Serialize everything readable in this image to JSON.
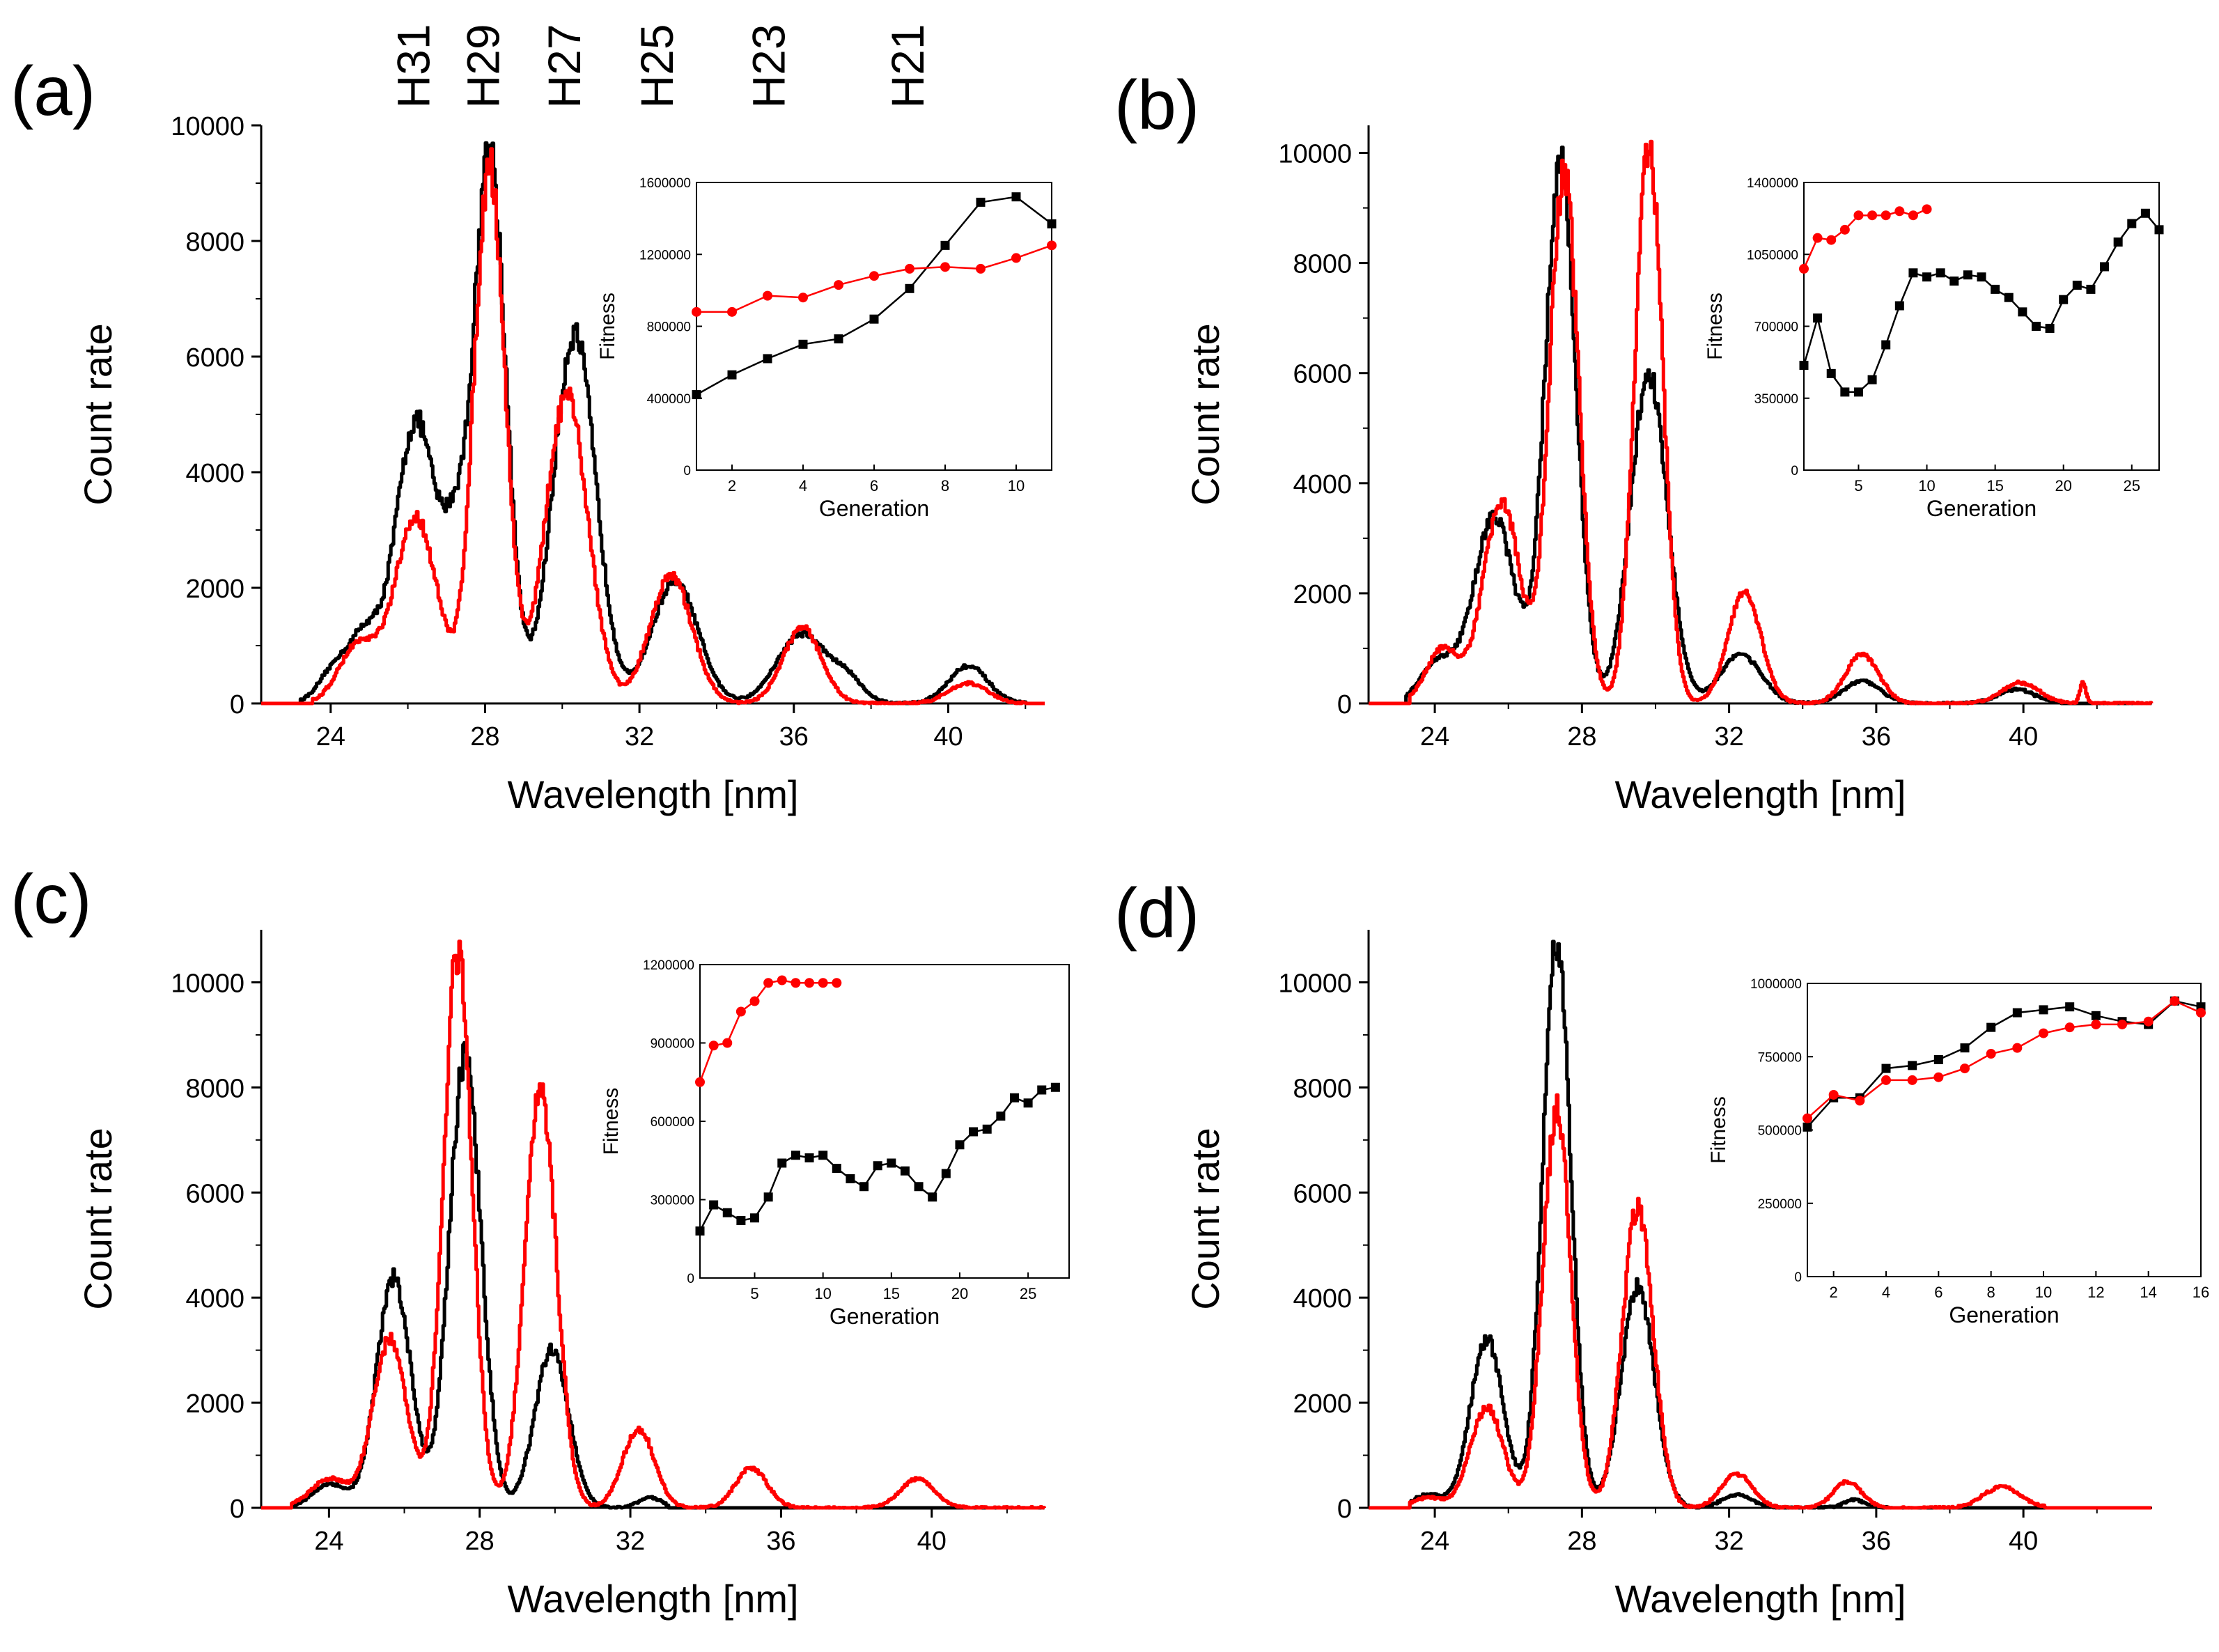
{
  "figure": {
    "harmonic_labels": [
      "H31",
      "H29",
      "H27",
      "H25",
      "H23",
      "H21"
    ],
    "harmonic_wavelengths_nm": [
      26.2,
      28.0,
      30.1,
      32.5,
      35.4,
      39.0
    ]
  },
  "colors": {
    "black_series": "#000000",
    "red_series": "#ff0000"
  },
  "chart_data": [
    {
      "panel_label": "(a)",
      "type": "line",
      "xlabel": "Wavelength [nm]",
      "ylabel": "Count rate",
      "xlim": [
        22.2,
        42.5
      ],
      "ylim": [
        0,
        10000
      ],
      "xticks": [
        24,
        28,
        32,
        36,
        40
      ],
      "yticks": [
        0,
        2000,
        4000,
        6000,
        8000,
        10000
      ],
      "series": [
        {
          "name": "black",
          "color": "#000000",
          "peaks": [
            [
              24.2,
              700,
              0.45
            ],
            [
              24.9,
              900,
              0.35
            ],
            [
              26.2,
              4900,
              0.55
            ],
            [
              27.2,
              1800,
              0.3
            ],
            [
              28.1,
              9600,
              0.42
            ],
            [
              30.3,
              6400,
              0.55
            ],
            [
              32.9,
              2100,
              0.6
            ],
            [
              36.2,
              1200,
              0.65
            ],
            [
              40.5,
              650,
              0.5
            ],
            [
              37.4,
              350,
              0.4
            ]
          ],
          "range": [
            23.2,
            42.0
          ]
        },
        {
          "name": "red",
          "color": "#ff0000",
          "peaks": [
            [
              24.7,
              1000,
              0.5
            ],
            [
              26.2,
              3200,
              0.55
            ],
            [
              28.1,
              9300,
              0.4
            ],
            [
              30.1,
              5300,
              0.55
            ],
            [
              32.8,
              2200,
              0.55
            ],
            [
              36.2,
              1300,
              0.5
            ],
            [
              40.5,
              350,
              0.5
            ]
          ],
          "range": [
            23.5,
            42.0
          ]
        }
      ],
      "inset": {
        "xlabel": "Generation",
        "ylabel": "Fitness",
        "xlim": [
          1,
          11
        ],
        "ylim": [
          0,
          1600000
        ],
        "xticks": [
          2,
          4,
          6,
          8,
          10
        ],
        "yticks": [
          0,
          400000,
          800000,
          1200000,
          1600000
        ],
        "series": [
          {
            "name": "black",
            "color": "#000000",
            "marker": "square",
            "x": [
              1,
              2,
              3,
              4,
              5,
              6,
              7,
              8,
              9,
              10,
              11
            ],
            "y": [
              420000,
              530000,
              620000,
              700000,
              730000,
              840000,
              1010000,
              1250000,
              1490000,
              1520000,
              1370000
            ]
          },
          {
            "name": "red",
            "color": "#ff0000",
            "marker": "circle",
            "x": [
              1,
              2,
              3,
              4,
              5,
              6,
              7,
              8,
              9,
              10,
              11
            ],
            "y": [
              880000,
              880000,
              970000,
              960000,
              1030000,
              1080000,
              1120000,
              1130000,
              1120000,
              1180000,
              1250000
            ]
          }
        ]
      }
    },
    {
      "panel_label": "(b)",
      "type": "line",
      "xlabel": "Wavelength [nm]",
      "ylabel": "Count rate",
      "xlim": [
        22.2,
        43.5
      ],
      "ylim": [
        0,
        10500
      ],
      "xticks": [
        24,
        28,
        32,
        36,
        40
      ],
      "yticks": [
        0,
        2000,
        4000,
        6000,
        8000,
        10000
      ],
      "series": [
        {
          "name": "black",
          "color": "#000000",
          "peaks": [
            [
              24.1,
              750,
              0.5
            ],
            [
              25.6,
              3400,
              0.55
            ],
            [
              27.4,
              9800,
              0.42
            ],
            [
              29.8,
              6000,
              0.5
            ],
            [
              32.3,
              900,
              0.55
            ],
            [
              35.6,
              400,
              0.5
            ],
            [
              39.8,
              250,
              0.5
            ]
          ],
          "range": [
            23.2,
            41.0
          ]
        },
        {
          "name": "red",
          "color": "#ff0000",
          "peaks": [
            [
              24.2,
              1000,
              0.45
            ],
            [
              25.8,
              3700,
              0.5
            ],
            [
              27.5,
              9600,
              0.4
            ],
            [
              29.8,
              10100,
              0.38
            ],
            [
              32.4,
              2000,
              0.45
            ],
            [
              35.6,
              900,
              0.45
            ],
            [
              39.9,
              380,
              0.5
            ],
            [
              41.6,
              400,
              0.08
            ]
          ],
          "range": [
            23.3,
            43.5
          ]
        }
      ],
      "inset": {
        "xlabel": "Generation",
        "ylabel": "Fitness",
        "xlim": [
          1,
          27
        ],
        "ylim": [
          0,
          1400000
        ],
        "xticks": [
          5,
          10,
          15,
          20,
          25
        ],
        "yticks": [
          0,
          350000,
          700000,
          1050000,
          1400000
        ],
        "series": [
          {
            "name": "black",
            "color": "#000000",
            "marker": "square",
            "x": [
              1,
              2,
              3,
              4,
              5,
              6,
              7,
              8,
              9,
              10,
              11,
              12,
              13,
              14,
              15,
              16,
              17,
              18,
              19,
              20,
              21,
              22,
              23,
              24,
              25,
              26,
              27
            ],
            "y": [
              510000,
              740000,
              470000,
              380000,
              380000,
              440000,
              610000,
              800000,
              960000,
              940000,
              960000,
              920000,
              950000,
              940000,
              880000,
              840000,
              770000,
              700000,
              690000,
              830000,
              900000,
              880000,
              990000,
              1110000,
              1200000,
              1250000,
              1170000
            ]
          },
          {
            "name": "red",
            "color": "#ff0000",
            "marker": "circle",
            "x": [
              1,
              2,
              3,
              4,
              5,
              6,
              7,
              8,
              9,
              10
            ],
            "y": [
              980000,
              1130000,
              1120000,
              1170000,
              1240000,
              1240000,
              1240000,
              1260000,
              1240000,
              1270000
            ]
          }
        ]
      }
    },
    {
      "panel_label": "(c)",
      "type": "line",
      "xlabel": "Wavelength [nm]",
      "ylabel": "Count rate",
      "xlim": [
        22.2,
        43.0
      ],
      "ylim": [
        0,
        11000
      ],
      "xticks": [
        24,
        28,
        32,
        36,
        40
      ],
      "yticks": [
        0,
        2000,
        4000,
        6000,
        8000,
        10000
      ],
      "series": [
        {
          "name": "black",
          "color": "#000000",
          "peaks": [
            [
              24.0,
              450,
              0.45
            ],
            [
              25.7,
              4400,
              0.45
            ],
            [
              27.6,
              8600,
              0.42
            ],
            [
              29.9,
              3000,
              0.45
            ],
            [
              32.5,
              200,
              0.3
            ]
          ],
          "range": [
            23.0,
            33.0
          ]
        },
        {
          "name": "red",
          "color": "#ff0000",
          "peaks": [
            [
              24.0,
              550,
              0.5
            ],
            [
              25.6,
              3200,
              0.45
            ],
            [
              27.4,
              10600,
              0.38
            ],
            [
              29.6,
              7900,
              0.42
            ],
            [
              32.2,
              1500,
              0.42
            ],
            [
              35.2,
              750,
              0.42
            ],
            [
              39.6,
              550,
              0.45
            ]
          ],
          "range": [
            23.0,
            43.0
          ]
        }
      ],
      "inset": {
        "xlabel": "Generation",
        "ylabel": "Fitness",
        "xlim": [
          1,
          28
        ],
        "ylim": [
          0,
          1200000
        ],
        "xticks": [
          5,
          10,
          15,
          20,
          25
        ],
        "yticks": [
          0,
          300000,
          600000,
          900000,
          1200000
        ],
        "series": [
          {
            "name": "black",
            "color": "#000000",
            "marker": "square",
            "x": [
              1,
              2,
              3,
              4,
              5,
              6,
              7,
              8,
              9,
              10,
              11,
              12,
              13,
              14,
              15,
              16,
              17,
              18,
              19,
              20,
              21,
              22,
              23,
              24,
              25,
              26,
              27
            ],
            "y": [
              180000,
              280000,
              250000,
              220000,
              230000,
              310000,
              440000,
              470000,
              460000,
              470000,
              420000,
              380000,
              350000,
              430000,
              440000,
              410000,
              350000,
              310000,
              400000,
              510000,
              560000,
              570000,
              620000,
              690000,
              670000,
              720000,
              730000
            ]
          },
          {
            "name": "red",
            "color": "#ff0000",
            "marker": "circle",
            "x": [
              1,
              2,
              3,
              4,
              5,
              6,
              7,
              8,
              9,
              10,
              11
            ],
            "y": [
              750000,
              890000,
              900000,
              1020000,
              1060000,
              1130000,
              1140000,
              1130000,
              1130000,
              1130000,
              1130000
            ]
          }
        ]
      }
    },
    {
      "panel_label": "(d)",
      "type": "line",
      "xlabel": "Wavelength [nm]",
      "ylabel": "Count rate",
      "xlim": [
        22.2,
        43.5
      ],
      "ylim": [
        0,
        11000
      ],
      "xticks": [
        24,
        28,
        32,
        36,
        40
      ],
      "yticks": [
        0,
        2000,
        4000,
        6000,
        8000,
        10000
      ],
      "series": [
        {
          "name": "black",
          "color": "#000000",
          "peaks": [
            [
              23.8,
              250,
              0.4
            ],
            [
              25.4,
              3200,
              0.45
            ],
            [
              27.3,
              10800,
              0.38
            ],
            [
              29.5,
              4200,
              0.45
            ],
            [
              32.2,
              250,
              0.4
            ],
            [
              35.4,
              150,
              0.3
            ]
          ],
          "range": [
            23.3,
            36.5
          ]
        },
        {
          "name": "red",
          "color": "#ff0000",
          "peaks": [
            [
              23.8,
              200,
              0.4
            ],
            [
              25.4,
              1900,
              0.45
            ],
            [
              27.3,
              7600,
              0.38
            ],
            [
              29.5,
              5700,
              0.42
            ],
            [
              32.2,
              650,
              0.42
            ],
            [
              35.2,
              500,
              0.38
            ],
            [
              39.4,
              400,
              0.5
            ]
          ],
          "range": [
            23.3,
            40.6
          ]
        }
      ],
      "inset": {
        "xlabel": "Generation",
        "ylabel": "Fitness",
        "xlim": [
          1,
          16
        ],
        "ylim": [
          0,
          1000000
        ],
        "xticks": [
          2,
          4,
          6,
          8,
          10,
          12,
          14,
          16
        ],
        "yticks": [
          0,
          250000,
          500000,
          750000,
          1000000
        ],
        "series": [
          {
            "name": "black",
            "color": "#000000",
            "marker": "square",
            "x": [
              1,
              2,
              3,
              4,
              5,
              6,
              7,
              8,
              9,
              10,
              11,
              12,
              13,
              14,
              15,
              16
            ],
            "y": [
              510000,
              610000,
              610000,
              710000,
              720000,
              740000,
              780000,
              850000,
              900000,
              910000,
              920000,
              890000,
              870000,
              860000,
              940000,
              920000
            ]
          },
          {
            "name": "red",
            "color": "#ff0000",
            "marker": "circle",
            "x": [
              1,
              2,
              3,
              4,
              5,
              6,
              7,
              8,
              9,
              10,
              11,
              12,
              13,
              14,
              15,
              16
            ],
            "y": [
              540000,
              620000,
              600000,
              670000,
              670000,
              680000,
              710000,
              760000,
              780000,
              830000,
              850000,
              860000,
              860000,
              870000,
              940000,
              900000
            ]
          }
        ]
      }
    }
  ]
}
